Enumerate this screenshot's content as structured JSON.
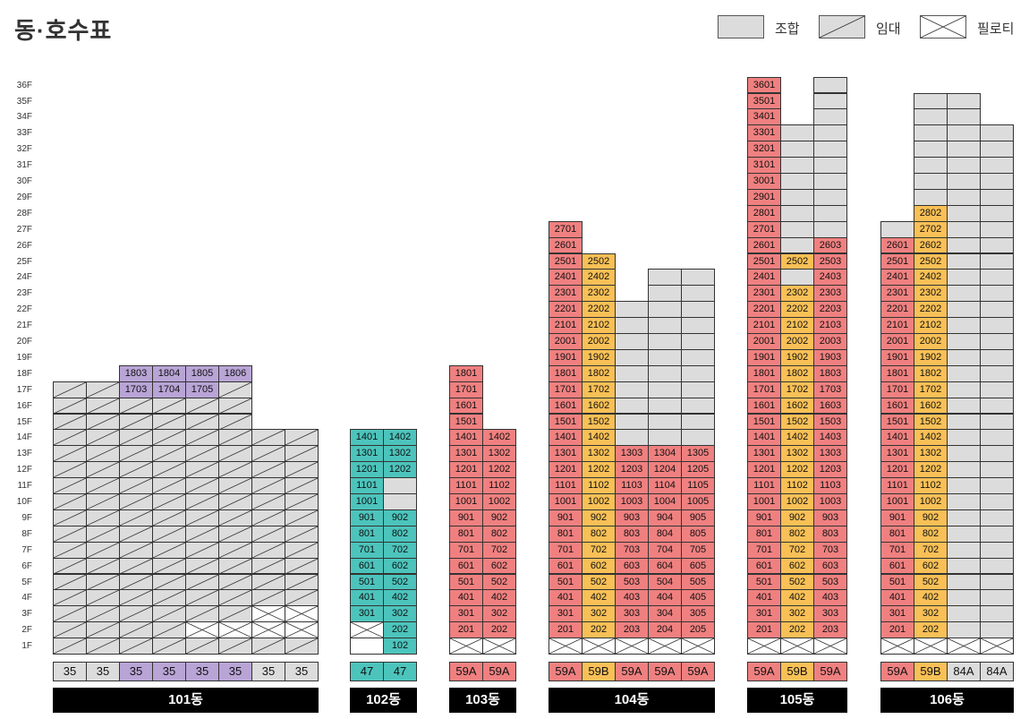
{
  "title": "동·호수표",
  "legend": [
    {
      "label": "조합",
      "style": "gray"
    },
    {
      "label": "임대",
      "style": "diag"
    },
    {
      "label": "필로티",
      "style": "x"
    }
  ],
  "colors": {
    "gray": "#dcdcdc",
    "pink": "#f08080",
    "orange": "#f8c056",
    "teal": "#4cc4bc",
    "purple": "#b9a4d6",
    "white": "#ffffff"
  },
  "floors": [
    "1F",
    "2F",
    "3F",
    "4F",
    "5F",
    "6F",
    "7F",
    "8F",
    "9F",
    "10F",
    "11F",
    "12F",
    "13F",
    "14F",
    "15F",
    "16F",
    "17F",
    "18F",
    "19F",
    "20F",
    "21F",
    "22F",
    "23F",
    "24F",
    "25F",
    "26F",
    "27F",
    "28F",
    "29F",
    "30F",
    "31F",
    "32F",
    "33F",
    "34F",
    "35F",
    "36F"
  ],
  "buildings": [
    {
      "name": "101동",
      "columns": [
        {
          "type": "35",
          "type_color": "gray",
          "top": 17,
          "numbered": [],
          "default": "diag",
          "special": {
            "1": "diag"
          }
        },
        {
          "type": "35",
          "type_color": "gray",
          "top": 17,
          "numbered": [],
          "default": "diag",
          "special": {}
        },
        {
          "type": "35",
          "type_color": "purple",
          "top": 18,
          "numbered": [
            17,
            18
          ],
          "color": "purple",
          "default": "diag",
          "suffix": "03",
          "special": {}
        },
        {
          "type": "35",
          "type_color": "purple",
          "top": 18,
          "numbered": [
            17,
            18
          ],
          "color": "purple",
          "default": "diag",
          "suffix": "04",
          "special": {}
        },
        {
          "type": "35",
          "type_color": "purple",
          "top": 18,
          "numbered": [
            17,
            18
          ],
          "color": "purple",
          "default": "diag",
          "suffix": "05",
          "special": {
            "1": "diag",
            "2": "x"
          }
        },
        {
          "type": "35",
          "type_color": "purple",
          "top": 18,
          "numbered": [
            18
          ],
          "color": "purple",
          "default": "diag",
          "suffix": "06",
          "special": {
            "2": "x",
            "17": "diag"
          }
        },
        {
          "type": "35",
          "type_color": "gray",
          "top": 14,
          "numbered": [],
          "default": "diag",
          "special": {
            "2": "x",
            "3": "x"
          }
        },
        {
          "type": "35",
          "type_color": "gray",
          "top": 14,
          "numbered": [],
          "default": "diag",
          "special": {
            "2": "x",
            "3": "x"
          }
        }
      ]
    },
    {
      "name": "102동",
      "columns": [
        {
          "type": "47",
          "type_color": "teal",
          "top": 14,
          "numbered": [
            3,
            4,
            5,
            6,
            7,
            8,
            9,
            10,
            11,
            12,
            13,
            14
          ],
          "color": "teal",
          "suffix": "01",
          "default": "gray",
          "special": {
            "1": "white",
            "2": "x"
          }
        },
        {
          "type": "47",
          "type_color": "teal",
          "top": 14,
          "numbered": [
            1,
            2,
            3,
            4,
            5,
            6,
            7,
            8,
            9,
            12,
            13,
            14
          ],
          "color": "teal",
          "suffix": "02",
          "default": "gray",
          "special": {}
        }
      ]
    },
    {
      "name": "103동",
      "columns": [
        {
          "type": "59A",
          "type_color": "pink",
          "top": 18,
          "numbered": [
            2,
            3,
            4,
            5,
            6,
            7,
            8,
            9,
            10,
            11,
            12,
            13,
            14,
            15,
            16,
            17,
            18
          ],
          "color": "pink",
          "suffix": "01",
          "default": "gray",
          "special": {
            "1": "x"
          }
        },
        {
          "type": "59A",
          "type_color": "pink",
          "top": 14,
          "numbered": [
            2,
            3,
            4,
            5,
            6,
            7,
            8,
            9,
            10,
            11,
            12,
            13,
            14
          ],
          "color": "pink",
          "suffix": "02",
          "default": "gray",
          "special": {
            "1": "x"
          }
        }
      ]
    },
    {
      "name": "104동",
      "columns": [
        {
          "type": "59A",
          "type_color": "pink",
          "top": 27,
          "numbered": [
            2,
            3,
            4,
            5,
            6,
            7,
            8,
            9,
            10,
            11,
            12,
            13,
            14,
            15,
            16,
            17,
            18,
            19,
            20,
            21,
            22,
            23,
            24,
            25,
            26,
            27
          ],
          "color": "pink",
          "suffix": "01",
          "default": "gray",
          "special": {
            "1": "x"
          }
        },
        {
          "type": "59B",
          "type_color": "orange",
          "top": 25,
          "numbered": [
            2,
            3,
            4,
            5,
            6,
            7,
            8,
            9,
            10,
            11,
            12,
            13,
            14,
            15,
            16,
            17,
            18,
            19,
            20,
            21,
            22,
            23,
            24,
            25
          ],
          "color": "orange",
          "suffix": "02",
          "default": "gray",
          "special": {
            "1": "x"
          }
        },
        {
          "type": "59A",
          "type_color": "pink",
          "top": 22,
          "numbered": [
            2,
            3,
            4,
            5,
            6,
            7,
            8,
            9,
            10,
            11,
            12,
            13
          ],
          "color": "pink",
          "suffix": "03",
          "default": "gray",
          "special": {
            "1": "x"
          }
        },
        {
          "type": "59A",
          "type_color": "pink",
          "top": 24,
          "numbered": [
            2,
            3,
            4,
            5,
            6,
            7,
            8,
            9,
            10,
            11,
            12,
            13
          ],
          "color": "pink",
          "suffix": "04",
          "default": "gray",
          "special": {
            "1": "x"
          }
        },
        {
          "type": "59A",
          "type_color": "pink",
          "top": 24,
          "numbered": [
            2,
            3,
            4,
            5,
            6,
            7,
            8,
            9,
            10,
            11,
            12,
            13
          ],
          "color": "pink",
          "suffix": "05",
          "default": "gray",
          "special": {
            "1": "x"
          }
        }
      ]
    },
    {
      "name": "105동",
      "columns": [
        {
          "type": "59A",
          "type_color": "pink",
          "top": 36,
          "numbered": [
            2,
            3,
            4,
            5,
            6,
            7,
            8,
            9,
            10,
            11,
            12,
            13,
            14,
            15,
            16,
            17,
            18,
            19,
            20,
            21,
            22,
            23,
            24,
            25,
            26,
            27,
            28,
            29,
            30,
            31,
            32,
            33,
            34,
            35,
            36
          ],
          "color": "pink",
          "suffix": "01",
          "default": "gray",
          "special": {
            "1": "x"
          }
        },
        {
          "type": "59B",
          "type_color": "orange",
          "top": 33,
          "numbered": [
            2,
            3,
            4,
            5,
            6,
            7,
            8,
            9,
            10,
            11,
            12,
            13,
            14,
            15,
            16,
            17,
            18,
            19,
            20,
            21,
            22,
            23,
            25
          ],
          "color": "orange",
          "suffix": "02",
          "default": "gray",
          "special": {
            "1": "x"
          }
        },
        {
          "type": "59A",
          "type_color": "pink",
          "top": 36,
          "numbered": [
            2,
            3,
            4,
            5,
            6,
            7,
            8,
            9,
            10,
            11,
            12,
            13,
            14,
            15,
            16,
            17,
            18,
            19,
            20,
            21,
            22,
            23,
            24,
            25,
            26
          ],
          "color": "pink",
          "suffix": "03",
          "default": "gray",
          "special": {
            "1": "x"
          }
        }
      ]
    },
    {
      "name": "106동",
      "columns": [
        {
          "type": "59A",
          "type_color": "pink",
          "top": 27,
          "numbered": [
            2,
            3,
            4,
            5,
            6,
            7,
            8,
            9,
            10,
            11,
            12,
            13,
            14,
            15,
            16,
            17,
            18,
            19,
            20,
            21,
            22,
            23,
            24,
            25,
            26
          ],
          "color": "pink",
          "suffix": "01",
          "default": "gray",
          "special": {
            "1": "x"
          }
        },
        {
          "type": "59B",
          "type_color": "orange",
          "top": 35,
          "numbered": [
            2,
            3,
            4,
            5,
            6,
            7,
            8,
            9,
            10,
            11,
            12,
            13,
            14,
            15,
            16,
            17,
            18,
            19,
            20,
            21,
            22,
            23,
            24,
            25,
            26,
            27,
            28
          ],
          "color": "orange",
          "suffix": "02",
          "default": "gray",
          "special": {
            "1": "x"
          }
        },
        {
          "type": "84A",
          "type_color": "gray",
          "top": 35,
          "numbered": [],
          "default": "gray",
          "special": {
            "1": "x"
          }
        },
        {
          "type": "84A",
          "type_color": "gray",
          "top": 33,
          "numbered": [],
          "default": "gray",
          "special": {
            "1": "x"
          }
        }
      ]
    }
  ]
}
